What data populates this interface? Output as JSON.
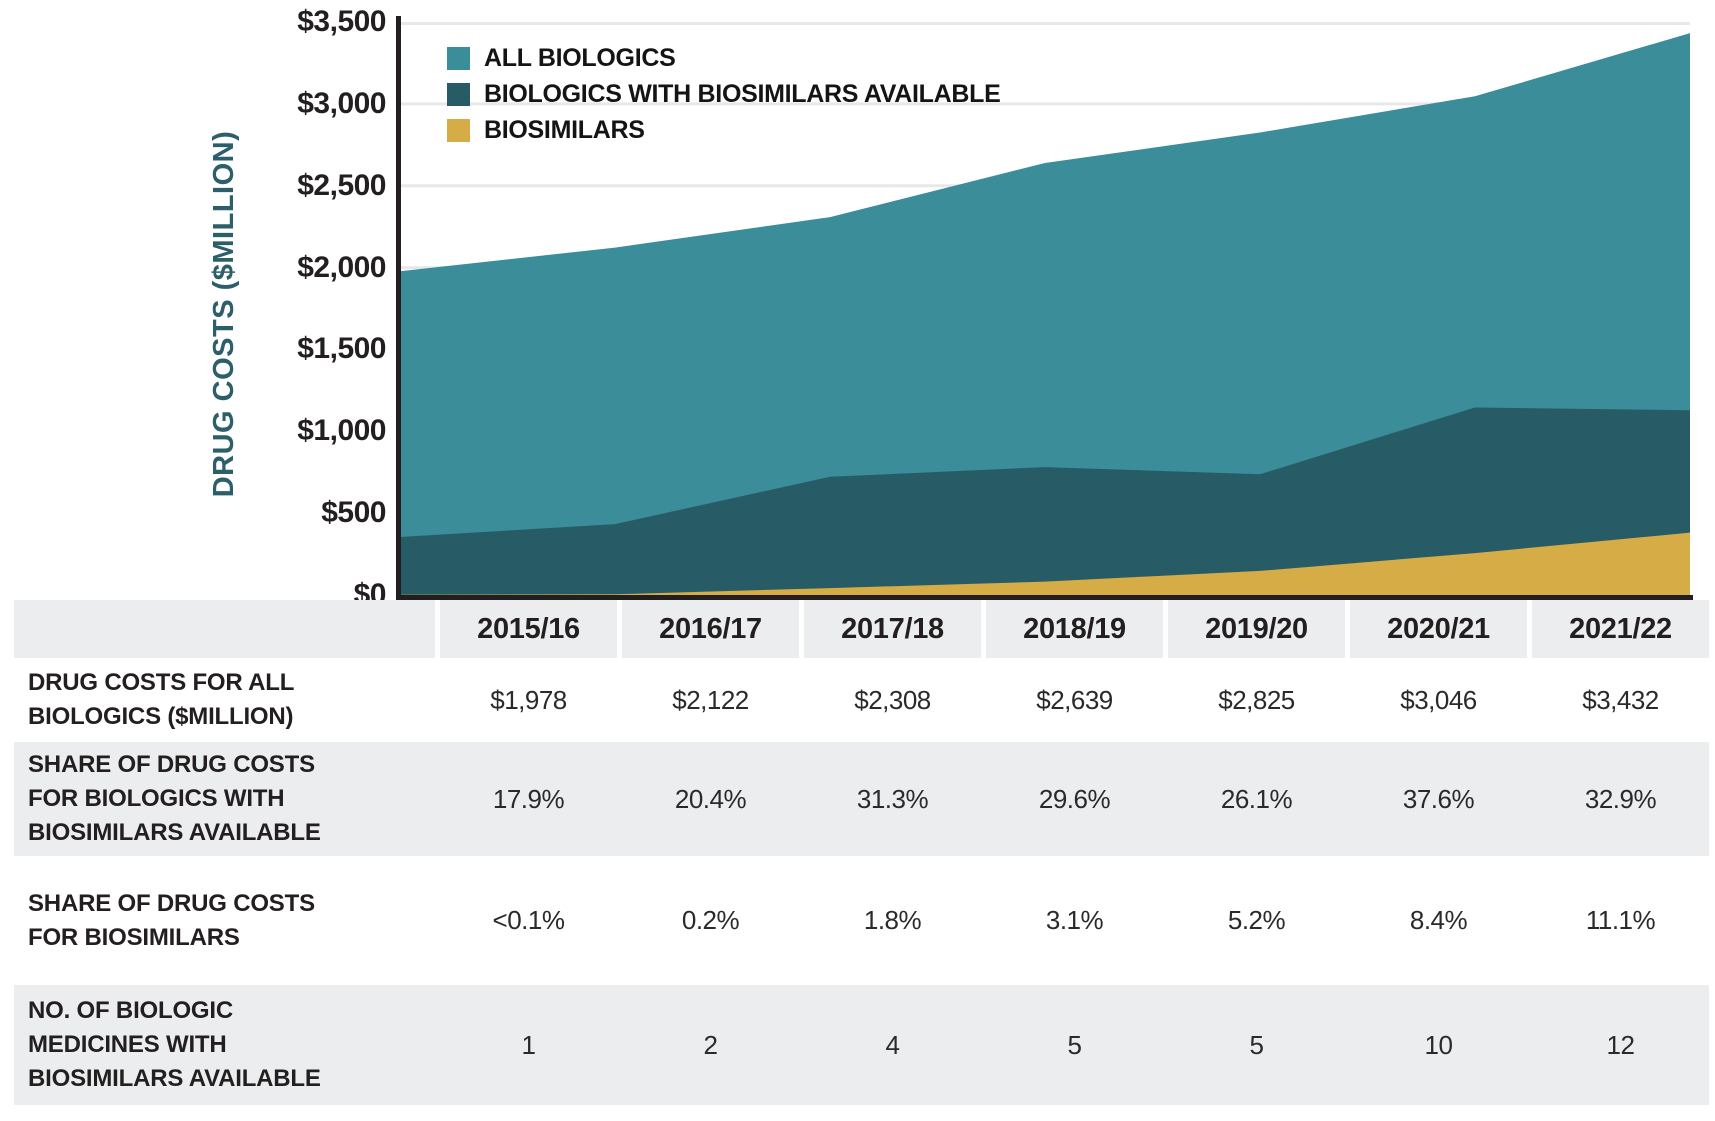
{
  "palette": {
    "all_biologics": "#3a8d99",
    "biologics_with_biosimilars": "#275c66",
    "biosimilars": "#d5ac45",
    "axis": "#231f20",
    "gridline": "#e7e8e9",
    "row_stripe": "#ebedee",
    "y_title": "#2d5f6b"
  },
  "chart_data": {
    "type": "area",
    "title": "",
    "xlabel": "",
    "ylabel": "DRUG COSTS ($MILLION)",
    "ylim": [
      0,
      3500
    ],
    "ytick_step": 500,
    "ytick_labels_bottom_up": [
      "$0",
      "$500",
      "$1,000",
      "$1,500",
      "$2,000",
      "$2,500",
      "$3,000",
      "$3,500"
    ],
    "grid": true,
    "legend_position": "top-left",
    "categories": [
      "2015/16",
      "2016/17",
      "2017/18",
      "2018/19",
      "2019/20",
      "2020/21",
      "2021/22"
    ],
    "series": [
      {
        "name": "ALL BIOLOGICS",
        "color": "#3a8d99",
        "values": [
          1978,
          2122,
          2308,
          2639,
          2825,
          3046,
          3432
        ]
      },
      {
        "name": "BIOLOGICS WITH BIOSIMILARS AVAILABLE",
        "color": "#275c66",
        "values": [
          354,
          433,
          722,
          781,
          737,
          1145,
          1129
        ]
      },
      {
        "name": "BIOSIMILARS",
        "color": "#d5ac45",
        "values": [
          2,
          4,
          42,
          82,
          147,
          256,
          381
        ]
      }
    ]
  },
  "table": {
    "column_headers": [
      "2015/16",
      "2016/17",
      "2017/18",
      "2018/19",
      "2019/20",
      "2020/21",
      "2021/22"
    ],
    "rows": [
      {
        "label_lines": [
          "DRUG COSTS FOR ALL",
          "BIOLOGICS ($MILLION)"
        ],
        "values": [
          "$1,978",
          "$2,122",
          "$2,308",
          "$2,639",
          "$2,825",
          "$3,046",
          "$3,432"
        ]
      },
      {
        "label_lines": [
          "SHARE OF DRUG COSTS",
          "FOR BIOLOGICS WITH",
          "BIOSIMILARS AVAILABLE"
        ],
        "values": [
          "17.9%",
          "20.4%",
          "31.3%",
          "29.6%",
          "26.1%",
          "37.6%",
          "32.9%"
        ]
      },
      {
        "label_lines": [
          "SHARE OF DRUG COSTS",
          "FOR BIOSIMILARS"
        ],
        "values": [
          "<0.1%",
          "0.2%",
          "1.8%",
          "3.1%",
          "5.2%",
          "8.4%",
          "11.1%"
        ]
      },
      {
        "label_lines": [
          "NO. OF BIOLOGIC",
          "MEDICINES WITH",
          "BIOSIMILARS AVAILABLE"
        ],
        "values": [
          "1",
          "2",
          "4",
          "5",
          "5",
          "10",
          "12"
        ]
      }
    ]
  }
}
